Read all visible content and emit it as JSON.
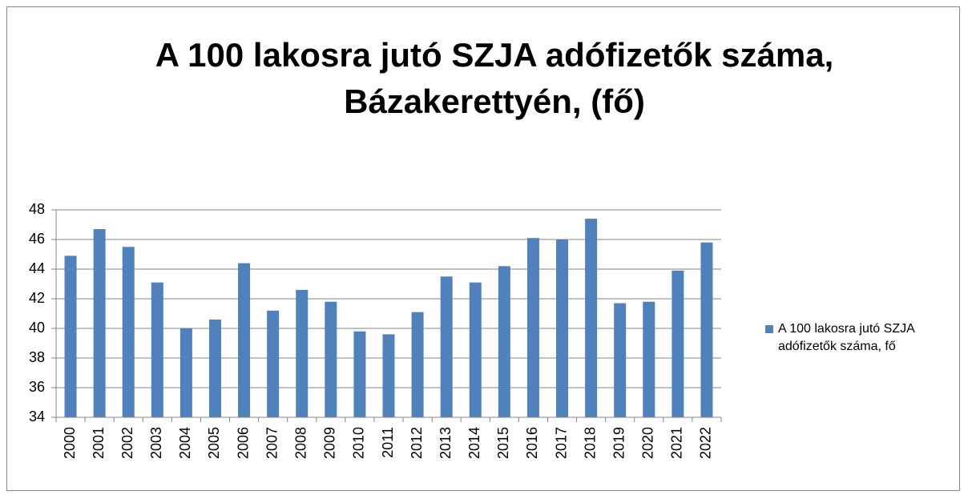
{
  "chart_data": {
    "type": "bar",
    "title": "A 100 lakosra jutó SZJA adófizetők száma, Bázakerettyén, (fő)",
    "categories": [
      "2000",
      "2001",
      "2002",
      "2003",
      "2004",
      "2005",
      "2006",
      "2007",
      "2008",
      "2009",
      "2010",
      "2011",
      "2012",
      "2013",
      "2014",
      "2015",
      "2016",
      "2017",
      "2018",
      "2019",
      "2020",
      "2021",
      "2022"
    ],
    "series": [
      {
        "name": "A 100 lakosra jutó SZJA adófizetők száma, fő",
        "color": "#4f81bd",
        "values": [
          44.9,
          46.7,
          45.5,
          43.1,
          40.0,
          40.6,
          44.4,
          41.2,
          42.6,
          41.8,
          39.8,
          39.6,
          41.1,
          43.5,
          43.1,
          44.2,
          46.1,
          46.0,
          47.4,
          41.7,
          41.8,
          43.9,
          45.8
        ]
      }
    ],
    "ylim": [
      34,
      48
    ],
    "yticks": [
      34,
      36,
      38,
      40,
      42,
      44,
      46,
      48
    ],
    "grid": true,
    "legend": "right"
  }
}
